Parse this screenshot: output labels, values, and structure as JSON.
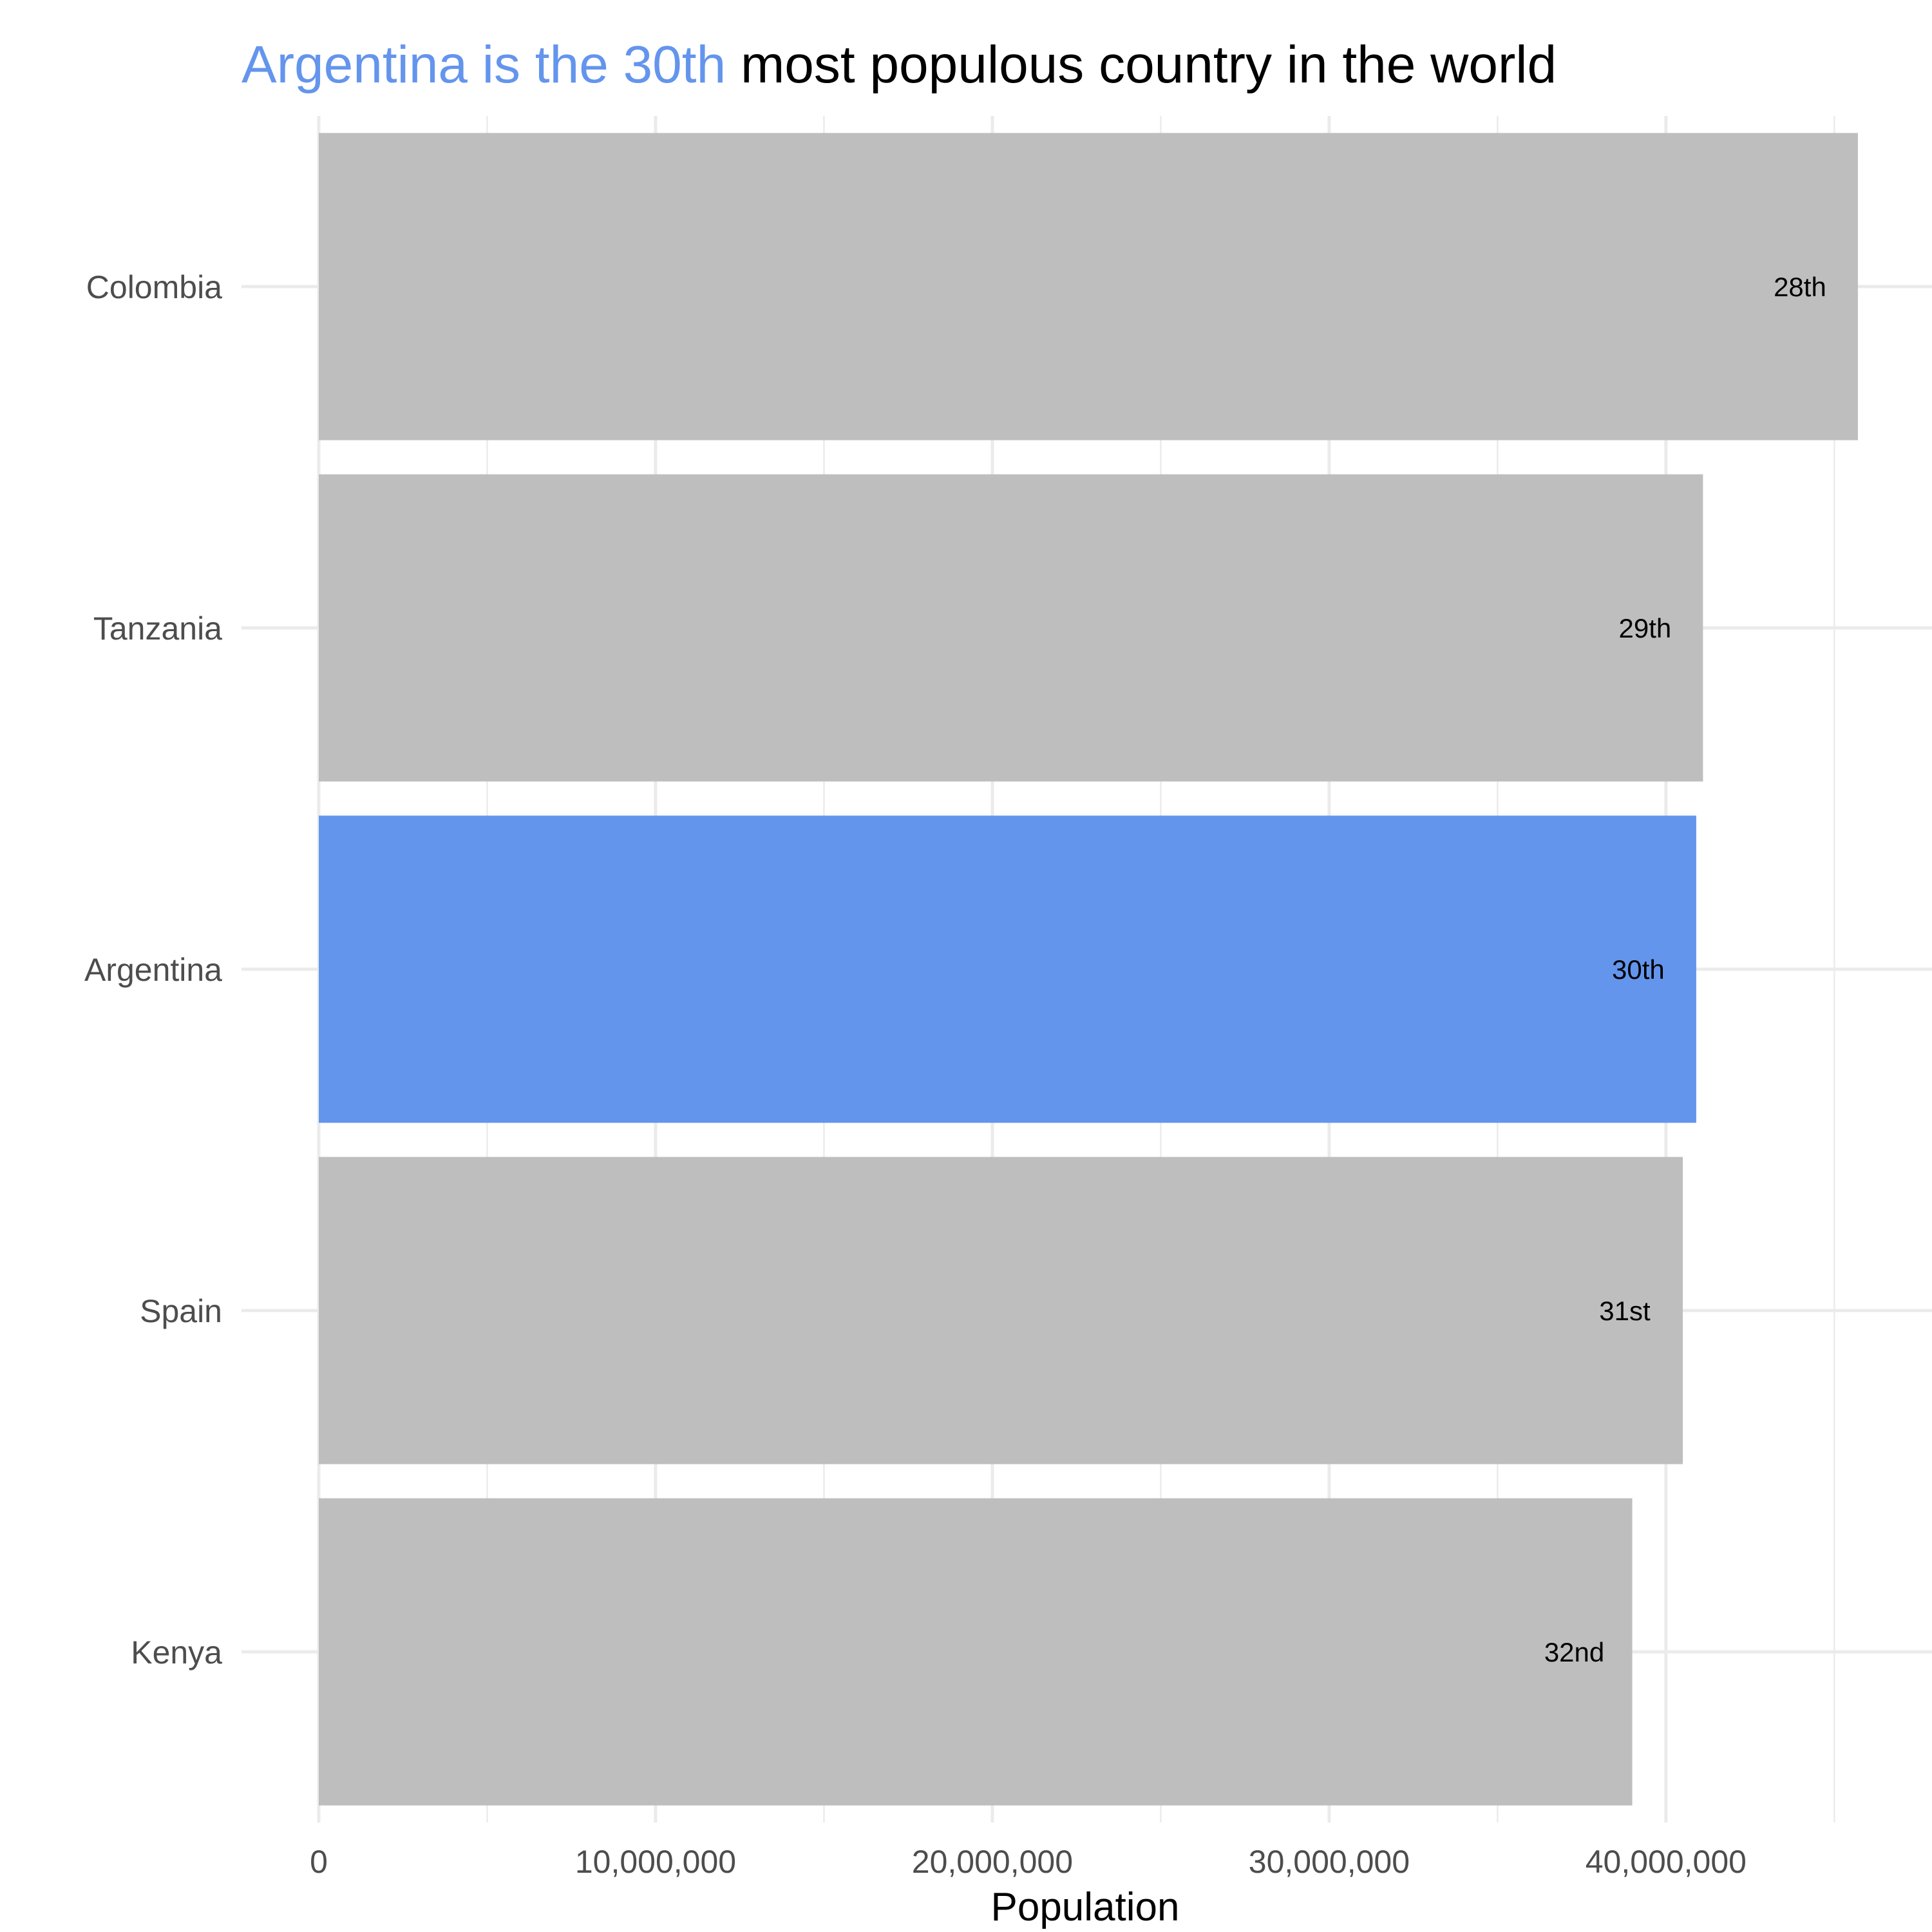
{
  "title": {
    "highlight": "Argentina is the 30th",
    "rest": " most populous country in the world"
  },
  "colors": {
    "highlight": "#6495ED",
    "bar": "#BEBEBE",
    "grid": "#EBEBEB",
    "title": "#000000",
    "tick": "#4D4D4D"
  },
  "chart_data": {
    "type": "bar",
    "orientation": "horizontal",
    "categories": [
      "Colombia",
      "Tanzania",
      "Argentina",
      "Spain",
      "Kenya"
    ],
    "values": [
      45700000,
      41100000,
      40900000,
      40500000,
      39000000
    ],
    "labels": [
      "28th",
      "29th",
      "30th",
      "31st",
      "32nd"
    ],
    "highlight": "Argentina",
    "xlabel": "Population",
    "ylabel": "",
    "xlim": [
      0,
      47900000
    ],
    "xticks": [
      0,
      10000000,
      20000000,
      30000000,
      40000000
    ],
    "xtick_labels": [
      "0",
      "10,000,000",
      "20,000,000",
      "30,000,000",
      "40,000,000"
    ],
    "grid": true
  }
}
